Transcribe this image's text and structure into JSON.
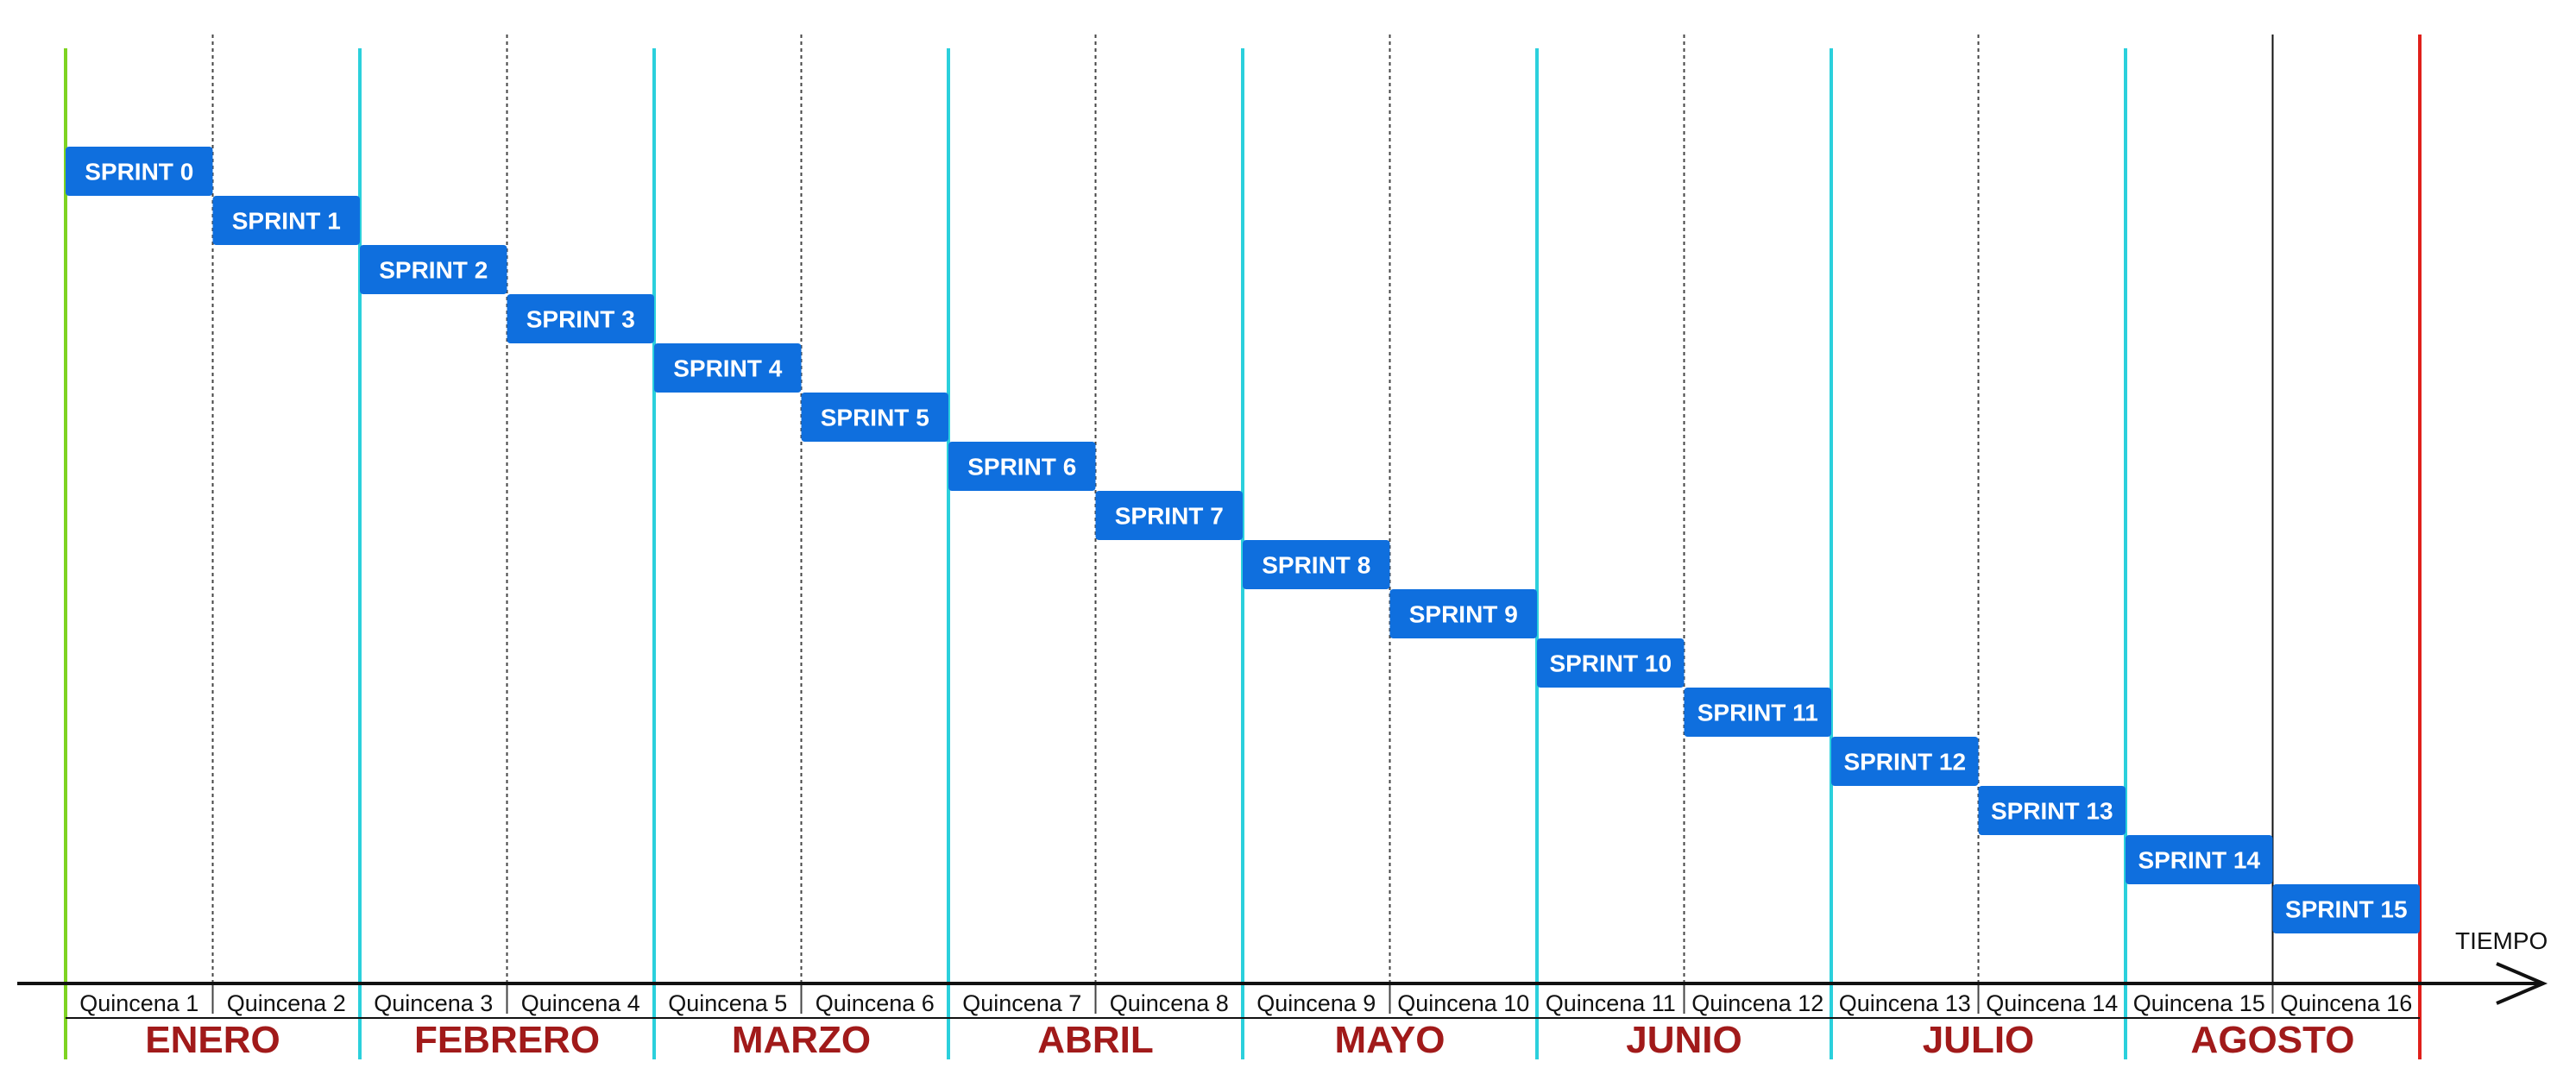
{
  "axis": {
    "label": "TIEMPO"
  },
  "colors": {
    "sprint_fill": "#0f6fde",
    "sprint_text": "#ffffff",
    "start_line": "#7ed321",
    "month_line": "#2bd0dc",
    "end_line": "#e0201b",
    "fortnight_line": "#444444",
    "month_text": "#a11a1a",
    "axis": "#111111"
  },
  "quincenas": [
    "Quincena 1",
    "Quincena 2",
    "Quincena 3",
    "Quincena 4",
    "Quincena 5",
    "Quincena 6",
    "Quincena 7",
    "Quincena 8",
    "Quincena 9",
    "Quincena 10",
    "Quincena 11",
    "Quincena 12",
    "Quincena 13",
    "Quincena 14",
    "Quincena 15",
    "Quincena 16"
  ],
  "months": [
    "ENERO",
    "FEBRERO",
    "MARZO",
    "ABRIL",
    "MAYO",
    "JUNIO",
    "JULIO",
    "AGOSTO"
  ],
  "sprints": [
    "SPRINT 0",
    "SPRINT 1",
    "SPRINT 2",
    "SPRINT 3",
    "SPRINT 4",
    "SPRINT 5",
    "SPRINT 6",
    "SPRINT 7",
    "SPRINT 8",
    "SPRINT 9",
    "SPRINT 10",
    "SPRINT 11",
    "SPRINT 12",
    "SPRINT 13",
    "SPRINT 14",
    "SPRINT 15"
  ]
}
